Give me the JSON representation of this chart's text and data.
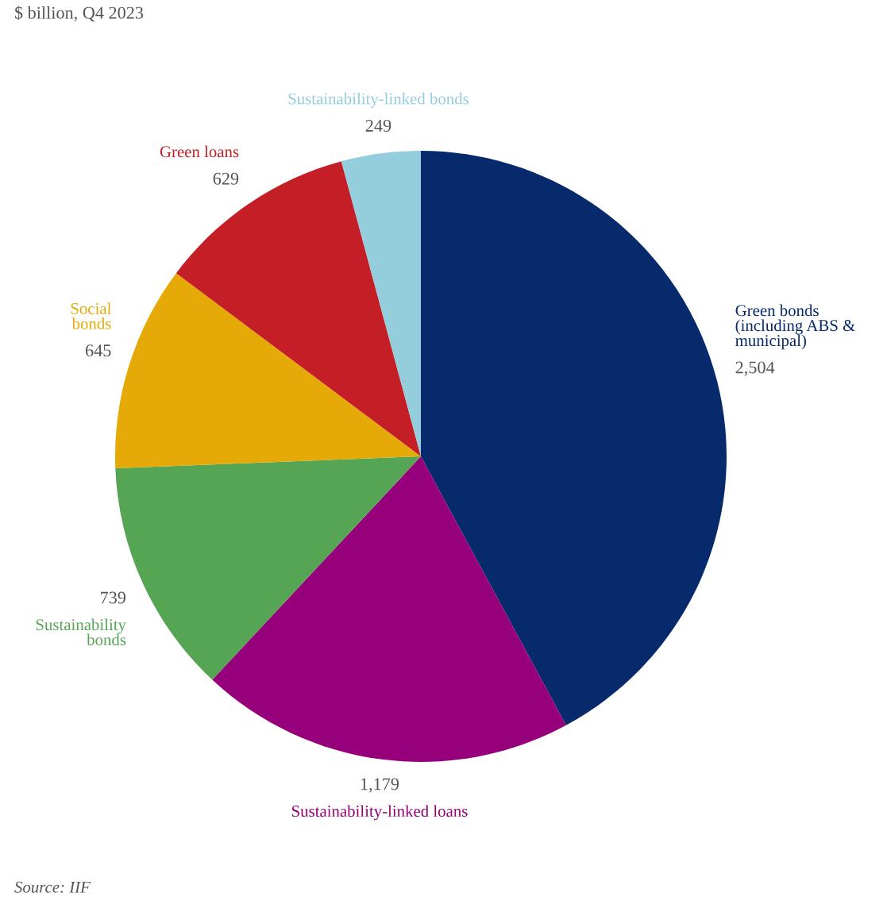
{
  "chart_data": {
    "type": "pie",
    "title": "$ billion, Q4 2023",
    "categories": [
      "Green bonds\n(including ABS &\nmunicipal)",
      "Sustainability-linked loans",
      "Sustainability\nbonds",
      "Social\nbonds",
      "Green loans",
      "Sustainability-linked bonds"
    ],
    "values": [
      2504,
      1179,
      739,
      645,
      629,
      249
    ],
    "value_labels": [
      "2,504",
      "1,179",
      "739",
      "645",
      "629",
      "249"
    ],
    "colors": [
      "#062a6b",
      "#96007a",
      "#55a555",
      "#e5aa08",
      "#c41f27",
      "#94cddc"
    ],
    "annotations": [
      "Source: IIF"
    ]
  }
}
